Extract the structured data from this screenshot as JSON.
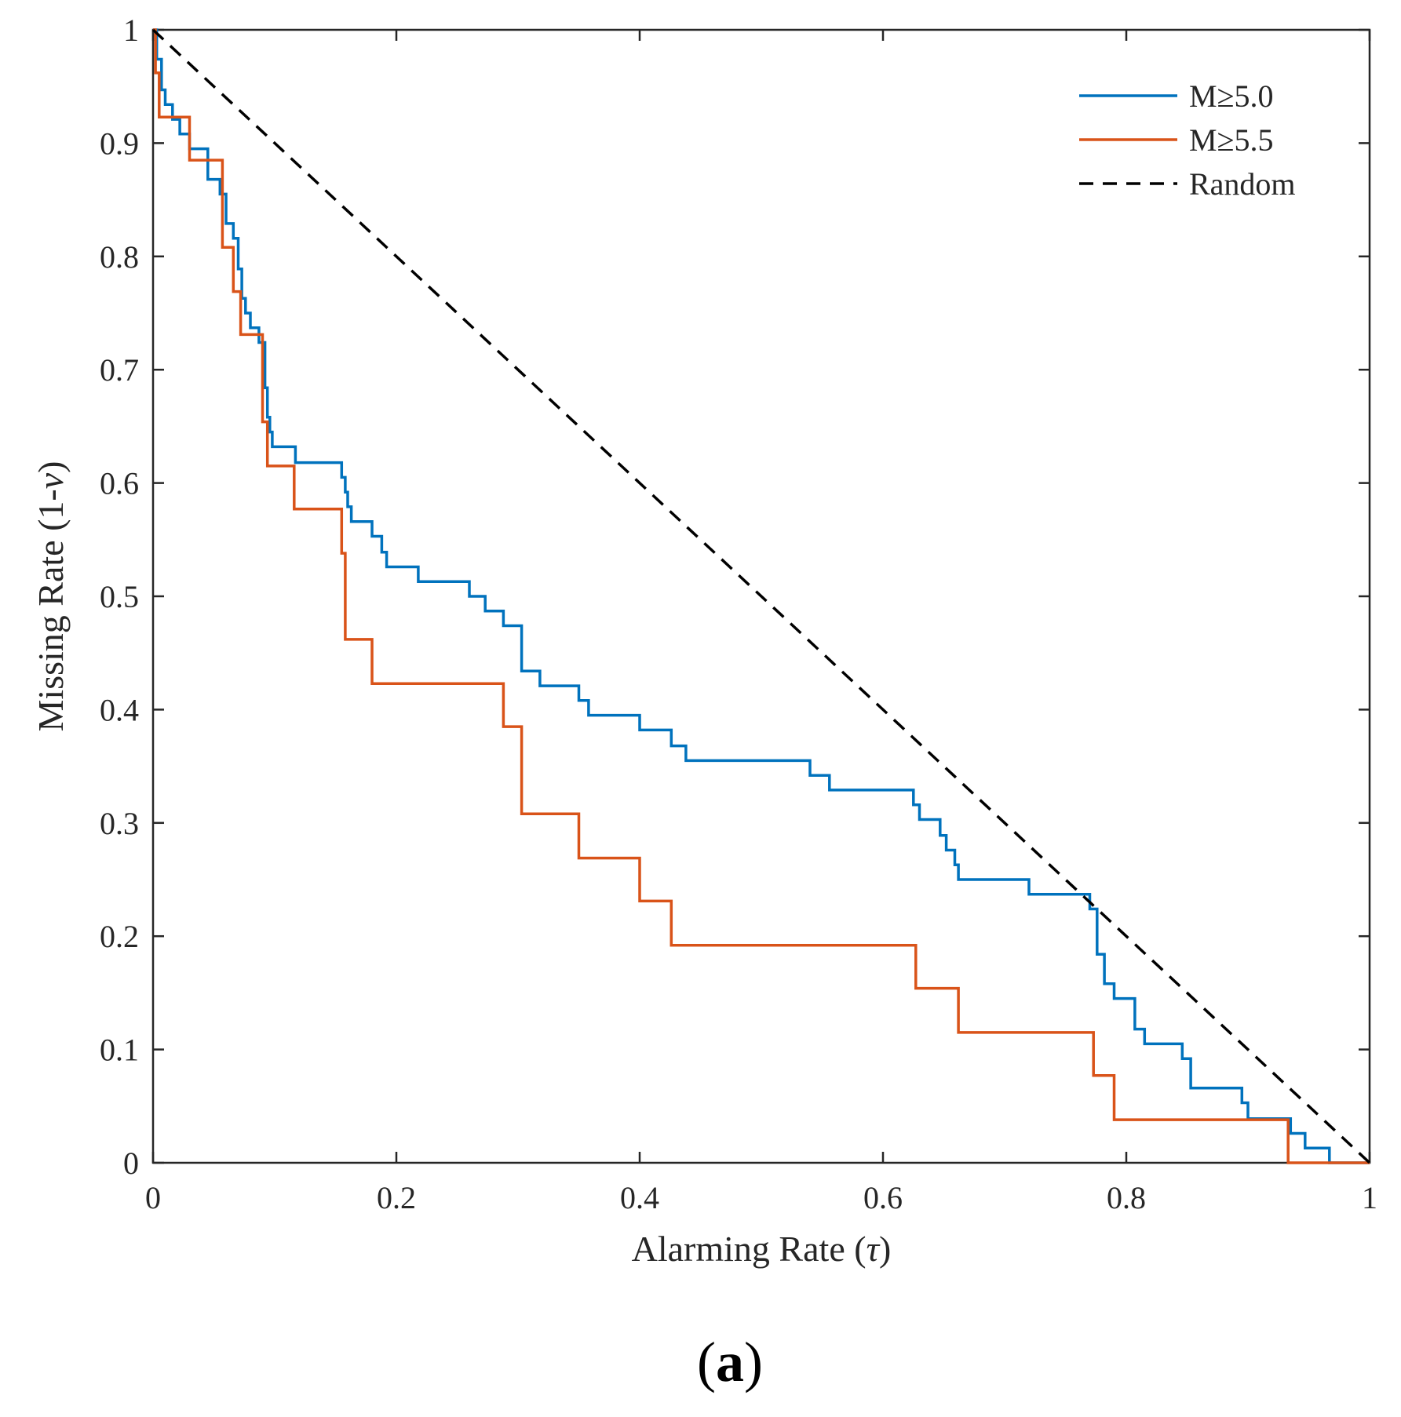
{
  "chart_data": {
    "type": "line",
    "title": "",
    "panel_label": {
      "open": "(",
      "letter": "a",
      "close": ")"
    },
    "xlabel": {
      "main": "Alarming Rate (",
      "symbol": "τ",
      "close": ")"
    },
    "ylabel": {
      "main": "Missing Rate (1-",
      "symbol": "ν",
      "close": ")"
    },
    "xlim": [
      0,
      1
    ],
    "ylim": [
      0,
      1
    ],
    "grid": false,
    "legend_position": "top-right",
    "x_ticks": [
      {
        "value": 0,
        "label": "0"
      },
      {
        "value": 0.2,
        "label": "0.2"
      },
      {
        "value": 0.4,
        "label": "0.4"
      },
      {
        "value": 0.6,
        "label": "0.6"
      },
      {
        "value": 0.8,
        "label": "0.8"
      },
      {
        "value": 1,
        "label": "1"
      }
    ],
    "y_ticks": [
      {
        "value": 0,
        "label": "0"
      },
      {
        "value": 0.1,
        "label": "0.1"
      },
      {
        "value": 0.2,
        "label": "0.2"
      },
      {
        "value": 0.3,
        "label": "0.3"
      },
      {
        "value": 0.4,
        "label": "0.4"
      },
      {
        "value": 0.5,
        "label": "0.5"
      },
      {
        "value": 0.6,
        "label": "0.6"
      },
      {
        "value": 0.7,
        "label": "0.7"
      },
      {
        "value": 0.8,
        "label": "0.8"
      },
      {
        "value": 0.9,
        "label": "0.9"
      },
      {
        "value": 1,
        "label": "1"
      }
    ],
    "series": [
      {
        "name": "M≥5.0",
        "color": "#0072BD",
        "style": "step",
        "points": [
          [
            0,
            1.0
          ],
          [
            0.003,
            1.0
          ],
          [
            0.003,
            0.974
          ],
          [
            0.007,
            0.974
          ],
          [
            0.007,
            0.947
          ],
          [
            0.01,
            0.947
          ],
          [
            0.01,
            0.934
          ],
          [
            0.016,
            0.934
          ],
          [
            0.016,
            0.921
          ],
          [
            0.02,
            0.921
          ],
          [
            0.02,
            0.921
          ],
          [
            0.022,
            0.921
          ],
          [
            0.022,
            0.908
          ],
          [
            0.03,
            0.908
          ],
          [
            0.03,
            0.895
          ],
          [
            0.045,
            0.895
          ],
          [
            0.045,
            0.868
          ],
          [
            0.055,
            0.868
          ],
          [
            0.055,
            0.855
          ],
          [
            0.06,
            0.855
          ],
          [
            0.06,
            0.829
          ],
          [
            0.066,
            0.829
          ],
          [
            0.066,
            0.816
          ],
          [
            0.07,
            0.816
          ],
          [
            0.07,
            0.789
          ],
          [
            0.073,
            0.789
          ],
          [
            0.073,
            0.763
          ],
          [
            0.076,
            0.763
          ],
          [
            0.076,
            0.75
          ],
          [
            0.08,
            0.75
          ],
          [
            0.08,
            0.737
          ],
          [
            0.087,
            0.737
          ],
          [
            0.087,
            0.724
          ],
          [
            0.092,
            0.724
          ],
          [
            0.092,
            0.684
          ],
          [
            0.094,
            0.684
          ],
          [
            0.094,
            0.658
          ],
          [
            0.096,
            0.658
          ],
          [
            0.096,
            0.645
          ],
          [
            0.098,
            0.645
          ],
          [
            0.098,
            0.632
          ],
          [
            0.117,
            0.632
          ],
          [
            0.117,
            0.618
          ],
          [
            0.155,
            0.618
          ],
          [
            0.155,
            0.605
          ],
          [
            0.158,
            0.605
          ],
          [
            0.158,
            0.592
          ],
          [
            0.16,
            0.592
          ],
          [
            0.16,
            0.579
          ],
          [
            0.163,
            0.579
          ],
          [
            0.163,
            0.566
          ],
          [
            0.18,
            0.566
          ],
          [
            0.18,
            0.553
          ],
          [
            0.188,
            0.553
          ],
          [
            0.188,
            0.539
          ],
          [
            0.192,
            0.539
          ],
          [
            0.192,
            0.526
          ],
          [
            0.218,
            0.526
          ],
          [
            0.218,
            0.513
          ],
          [
            0.26,
            0.513
          ],
          [
            0.26,
            0.5
          ],
          [
            0.273,
            0.5
          ],
          [
            0.273,
            0.487
          ],
          [
            0.288,
            0.487
          ],
          [
            0.288,
            0.474
          ],
          [
            0.303,
            0.474
          ],
          [
            0.303,
            0.434
          ],
          [
            0.318,
            0.434
          ],
          [
            0.318,
            0.421
          ],
          [
            0.35,
            0.421
          ],
          [
            0.35,
            0.408
          ],
          [
            0.358,
            0.408
          ],
          [
            0.358,
            0.395
          ],
          [
            0.4,
            0.395
          ],
          [
            0.4,
            0.382
          ],
          [
            0.426,
            0.382
          ],
          [
            0.426,
            0.368
          ],
          [
            0.438,
            0.368
          ],
          [
            0.438,
            0.355
          ],
          [
            0.54,
            0.355
          ],
          [
            0.54,
            0.342
          ],
          [
            0.556,
            0.342
          ],
          [
            0.556,
            0.329
          ],
          [
            0.625,
            0.329
          ],
          [
            0.625,
            0.316
          ],
          [
            0.63,
            0.316
          ],
          [
            0.63,
            0.303
          ],
          [
            0.647,
            0.303
          ],
          [
            0.647,
            0.289
          ],
          [
            0.652,
            0.289
          ],
          [
            0.652,
            0.276
          ],
          [
            0.659,
            0.276
          ],
          [
            0.659,
            0.263
          ],
          [
            0.662,
            0.263
          ],
          [
            0.662,
            0.25
          ],
          [
            0.72,
            0.25
          ],
          [
            0.72,
            0.237
          ],
          [
            0.77,
            0.237
          ],
          [
            0.77,
            0.224
          ],
          [
            0.776,
            0.224
          ],
          [
            0.776,
            0.184
          ],
          [
            0.782,
            0.184
          ],
          [
            0.782,
            0.158
          ],
          [
            0.79,
            0.158
          ],
          [
            0.79,
            0.145
          ],
          [
            0.807,
            0.145
          ],
          [
            0.807,
            0.118
          ],
          [
            0.815,
            0.118
          ],
          [
            0.815,
            0.105
          ],
          [
            0.846,
            0.105
          ],
          [
            0.846,
            0.092
          ],
          [
            0.853,
            0.092
          ],
          [
            0.853,
            0.066
          ],
          [
            0.895,
            0.066
          ],
          [
            0.895,
            0.053
          ],
          [
            0.9,
            0.053
          ],
          [
            0.9,
            0.039
          ],
          [
            0.935,
            0.039
          ],
          [
            0.935,
            0.026
          ],
          [
            0.947,
            0.026
          ],
          [
            0.947,
            0.013
          ],
          [
            0.967,
            0.013
          ],
          [
            0.967,
            0.0
          ],
          [
            1.0,
            0.0
          ]
        ]
      },
      {
        "name": "M≥5.5",
        "color": "#D95319",
        "style": "step",
        "points": [
          [
            0,
            1.0
          ],
          [
            0.002,
            1.0
          ],
          [
            0.002,
            0.962
          ],
          [
            0.005,
            0.962
          ],
          [
            0.005,
            0.923
          ],
          [
            0.03,
            0.923
          ],
          [
            0.03,
            0.885
          ],
          [
            0.057,
            0.885
          ],
          [
            0.057,
            0.808
          ],
          [
            0.066,
            0.808
          ],
          [
            0.066,
            0.769
          ],
          [
            0.072,
            0.769
          ],
          [
            0.072,
            0.731
          ],
          [
            0.09,
            0.731
          ],
          [
            0.09,
            0.654
          ],
          [
            0.094,
            0.654
          ],
          [
            0.094,
            0.615
          ],
          [
            0.116,
            0.615
          ],
          [
            0.116,
            0.577
          ],
          [
            0.155,
            0.577
          ],
          [
            0.155,
            0.538
          ],
          [
            0.158,
            0.538
          ],
          [
            0.158,
            0.462
          ],
          [
            0.18,
            0.462
          ],
          [
            0.18,
            0.423
          ],
          [
            0.288,
            0.423
          ],
          [
            0.288,
            0.385
          ],
          [
            0.303,
            0.385
          ],
          [
            0.303,
            0.308
          ],
          [
            0.35,
            0.308
          ],
          [
            0.35,
            0.269
          ],
          [
            0.4,
            0.269
          ],
          [
            0.4,
            0.231
          ],
          [
            0.426,
            0.231
          ],
          [
            0.426,
            0.192
          ],
          [
            0.627,
            0.192
          ],
          [
            0.627,
            0.154
          ],
          [
            0.662,
            0.154
          ],
          [
            0.662,
            0.115
          ],
          [
            0.773,
            0.115
          ],
          [
            0.773,
            0.077
          ],
          [
            0.79,
            0.077
          ],
          [
            0.79,
            0.038
          ],
          [
            0.933,
            0.038
          ],
          [
            0.933,
            0.0
          ],
          [
            1.0,
            0.0
          ]
        ]
      },
      {
        "name": "Random",
        "color": "#000000",
        "style": "dashed",
        "points": [
          [
            0,
            1
          ],
          [
            1,
            0
          ]
        ]
      }
    ]
  }
}
